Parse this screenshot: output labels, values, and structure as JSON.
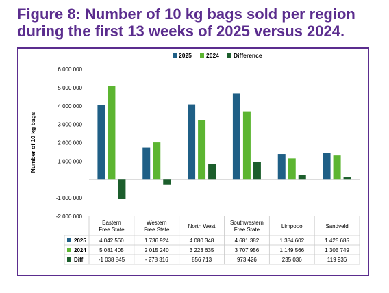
{
  "title": "Figure 8: Number of 10 kg bags sold per region during the first 13 weeks of 2025 versus 2024.",
  "chart_data": {
    "type": "bar",
    "categories": [
      [
        "Eastern",
        "Free State"
      ],
      [
        "Western",
        "Free State"
      ],
      [
        "North West"
      ],
      [
        "Southwestern",
        "Free State"
      ],
      [
        "Limpopo"
      ],
      [
        "Sandveld"
      ]
    ],
    "series": [
      {
        "name": "2025",
        "table_label": "2025",
        "color": "#1f5f86",
        "values": [
          4042560,
          1736924,
          4080348,
          4681382,
          1384602,
          1425685
        ],
        "display": [
          "4 042 560",
          "1 736 924",
          "4 080 348",
          "4 681 382",
          "1 384 602",
          "1 425 685"
        ]
      },
      {
        "name": "2024",
        "table_label": "2024",
        "color": "#5cb531",
        "values": [
          5081405,
          2015240,
          3223635,
          3707956,
          1149566,
          1305749
        ],
        "display": [
          "5 081 405",
          "2 015 240",
          "3 223 635",
          "3 707 956",
          "1 149 566",
          "1 305 749"
        ]
      },
      {
        "name": "Difference",
        "table_label": "Diff",
        "color": "#1c5e2c",
        "values": [
          -1038845,
          -278316,
          856713,
          973426,
          235036,
          119936
        ],
        "display": [
          "-1 038 845",
          "- 278 316",
          "856 713",
          "973 426",
          "235 036",
          "119 936"
        ]
      }
    ],
    "ylabel": "Number of 10 kg bags",
    "ylim": [
      -2000000,
      6000000
    ],
    "yticks": [
      6000000,
      5000000,
      4000000,
      3000000,
      2000000,
      1000000,
      0,
      -1000000,
      -2000000
    ],
    "ytick_labels": [
      "6 000 000",
      "5 000 000",
      "4 000 000",
      "3 000 000",
      "2 000 000",
      "1 000 000",
      "",
      "-1 000 000",
      "-2 000 000"
    ],
    "legend_position": "top-center",
    "grid": false
  }
}
